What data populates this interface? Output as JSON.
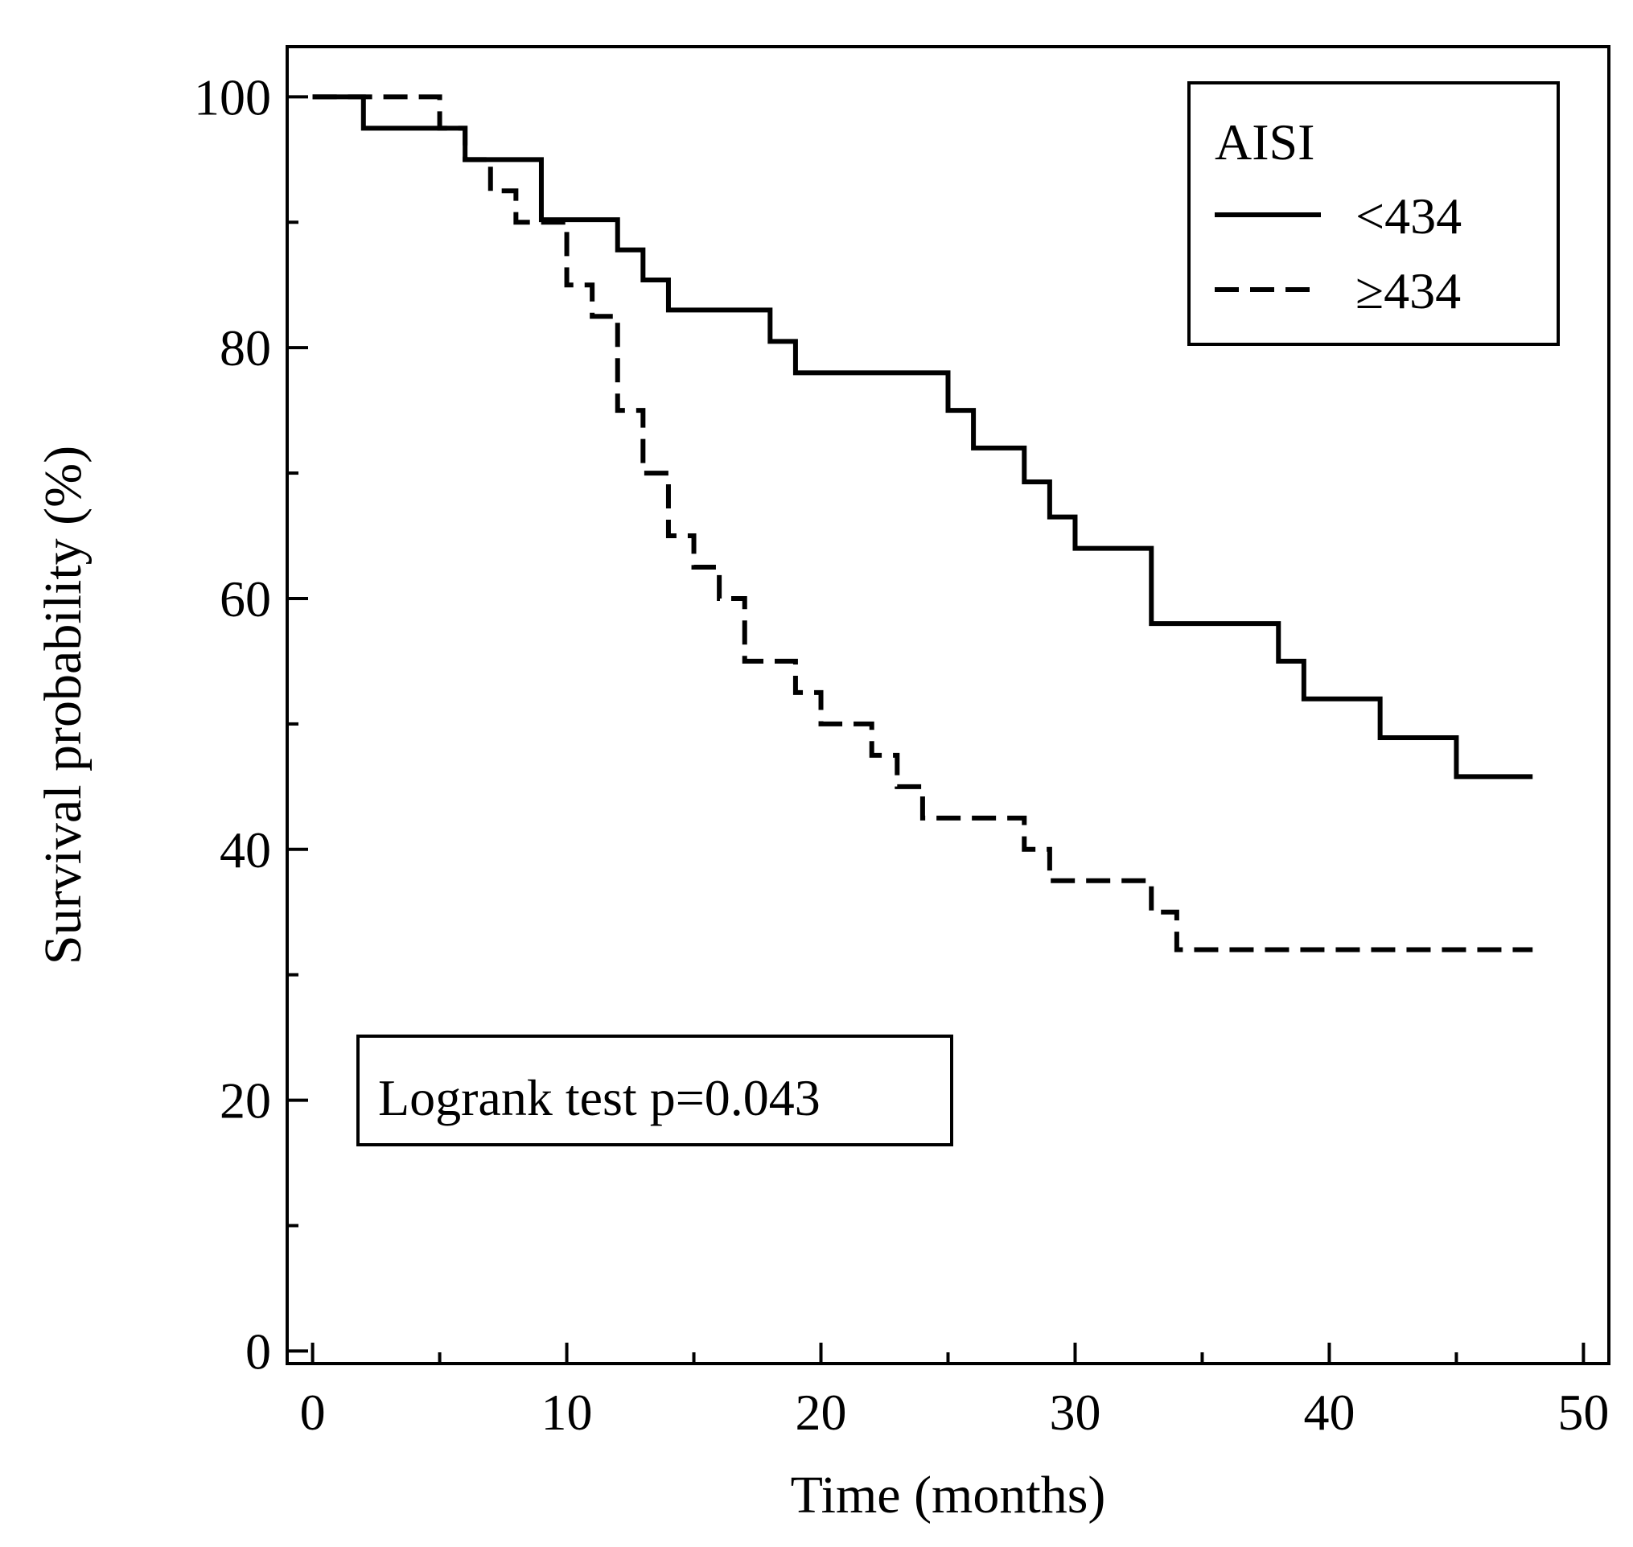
{
  "chart_data": {
    "type": "line",
    "subtype": "kaplan-meier-step",
    "title": "",
    "xlabel": "Time (months)",
    "ylabel": "Survival probability (%)",
    "xlim": [
      -1,
      51
    ],
    "ylim": [
      -1,
      104
    ],
    "xticks": [
      0,
      10,
      20,
      30,
      40,
      50
    ],
    "yticks": [
      0,
      20,
      40,
      60,
      80,
      100
    ],
    "xticks_labels": [
      "0",
      "10",
      "20",
      "30",
      "40",
      "50"
    ],
    "yticks_labels": [
      "0",
      "20",
      "40",
      "60",
      "80",
      "100"
    ],
    "x_minor_ticks": [
      5,
      15,
      25,
      35,
      45
    ],
    "y_minor_ticks": [
      10,
      30,
      50,
      70,
      90
    ],
    "grid": false,
    "legend": {
      "title": "AISI",
      "placement": "top-right",
      "entries": [
        {
          "label": "<434",
          "style": "solid"
        },
        {
          "label": "≥434",
          "style": "dashed"
        }
      ]
    },
    "annotation": {
      "text": "Logrank test p=0.043",
      "placement": "bottom-left"
    },
    "series": [
      {
        "name": "<434",
        "style": "solid",
        "color": "#000000",
        "x": [
          0,
          2,
          5,
          6,
          9,
          12,
          13,
          14,
          18,
          19,
          25,
          26,
          28,
          29,
          30,
          33,
          38,
          39,
          42,
          45,
          48
        ],
        "y": [
          100,
          97.5,
          97.5,
          95,
          90.2,
          87.8,
          85.4,
          83,
          80.5,
          78,
          75,
          72,
          69.3,
          66.5,
          64,
          58,
          55,
          52,
          48.9,
          45.8,
          45.8
        ]
      },
      {
        "name": "≥434",
        "style": "dashed",
        "color": "#000000",
        "x": [
          0,
          5,
          6,
          7,
          8,
          10,
          11,
          12,
          13,
          14,
          15,
          16,
          17,
          19,
          20,
          22,
          23,
          24,
          28,
          29,
          33,
          34,
          48
        ],
        "y": [
          100,
          97.5,
          95,
          92.5,
          90,
          85,
          82.5,
          75,
          70,
          65,
          62.5,
          60,
          55,
          52.5,
          50,
          47.5,
          45,
          42.5,
          40,
          37.5,
          35,
          32,
          32
        ]
      }
    ]
  }
}
